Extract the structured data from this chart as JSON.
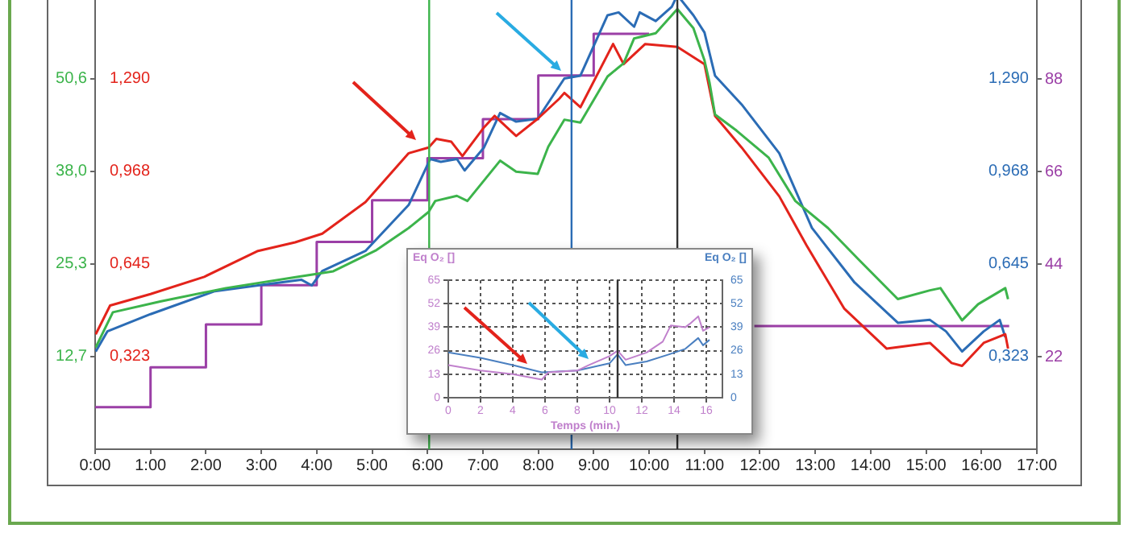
{
  "chart_data": [
    {
      "type": "line",
      "xlim": [
        0,
        17
      ],
      "xticks": [
        {
          "value": 0,
          "label": "0:00"
        },
        {
          "value": 1,
          "label": "1:00"
        },
        {
          "value": 2,
          "label": "2:00"
        },
        {
          "value": 3,
          "label": "3:00"
        },
        {
          "value": 4,
          "label": "4:00"
        },
        {
          "value": 5,
          "label": "5:00"
        },
        {
          "value": 6,
          "label": "6:00"
        },
        {
          "value": 7,
          "label": "7:00"
        },
        {
          "value": 8,
          "label": "8:00"
        },
        {
          "value": 9,
          "label": "9:00"
        },
        {
          "value": 10,
          "label": "10:00"
        },
        {
          "value": 11,
          "label": "11:00"
        },
        {
          "value": 12,
          "label": "12:00"
        },
        {
          "value": 13,
          "label": "13:00"
        },
        {
          "value": 14,
          "label": "14:00"
        },
        {
          "value": 15,
          "label": "15:00"
        },
        {
          "value": 16,
          "label": "16:00"
        },
        {
          "value": 17,
          "label": "17:00"
        }
      ],
      "ylim": [
        0,
        62
      ],
      "yticks": [
        {
          "value": 12.65,
          "label": "12,7"
        },
        {
          "value": 25.3,
          "label": "25,3"
        },
        {
          "value": 37.95,
          "label": "38,0"
        },
        {
          "value": 50.6,
          "label": "50,6"
        }
      ],
      "y2lim": [
        0,
        1.58
      ],
      "y2ticks": [
        {
          "value": 0.3225,
          "label": "0,323"
        },
        {
          "value": 0.645,
          "label": "0,645"
        },
        {
          "value": 0.9675,
          "label": "0,968"
        },
        {
          "value": 1.29,
          "label": "1,290"
        }
      ],
      "y3lim": [
        0,
        108
      ],
      "y3ticks": [
        22,
        44,
        66,
        88
      ],
      "series": [
        {
          "color": "#3cb44b",
          "axis": "y",
          "x": [
            0.01,
            0.32,
            1.19,
            2.36,
            3.62,
            4.3,
            5.08,
            5.66,
            6.02,
            6.14,
            6.53,
            6.72,
            7.31,
            7.6,
            7.99,
            8.18,
            8.47,
            8.76,
            9.25,
            9.54,
            9.73,
            10.12,
            10.51,
            10.8,
            11.0,
            11.09,
            11.19,
            11.58,
            12.16,
            12.64,
            13.23,
            13.81,
            14.49,
            15.07,
            15.26,
            15.65,
            15.94,
            16.43,
            16.48
          ],
          "values": [
            13.9,
            18.7,
            20.2,
            22.0,
            23.5,
            24.3,
            27.2,
            30.2,
            32.4,
            33.9,
            34.6,
            33.9,
            39.4,
            37.9,
            37.6,
            41.3,
            45.0,
            44.6,
            50.9,
            52.7,
            56.1,
            56.8,
            60.1,
            57.5,
            53.1,
            50.1,
            45.7,
            43.5,
            39.8,
            33.9,
            30.2,
            25.7,
            20.5,
            21.7,
            22.0,
            17.6,
            19.8,
            22.0,
            20.5
          ]
        },
        {
          "color": "#e3231b",
          "axis": "y2",
          "x": [
            0.01,
            0.27,
            1.0,
            1.97,
            2.94,
            3.61,
            4.1,
            4.88,
            5.66,
            6.02,
            6.16,
            6.43,
            6.63,
            7.02,
            7.21,
            7.6,
            7.99,
            8.38,
            8.47,
            8.76,
            9.35,
            9.54,
            9.93,
            10.51,
            11.0,
            11.19,
            11.67,
            12.35,
            12.84,
            13.52,
            14.29,
            15.07,
            15.46,
            15.65,
            16.04,
            16.43,
            16.48
          ],
          "values": [
            0.4,
            0.5,
            0.54,
            0.6,
            0.69,
            0.72,
            0.75,
            0.86,
            1.03,
            1.05,
            1.08,
            1.07,
            1.02,
            1.12,
            1.16,
            1.09,
            1.15,
            1.22,
            1.24,
            1.19,
            1.41,
            1.34,
            1.41,
            1.4,
            1.34,
            1.16,
            1.05,
            0.88,
            0.71,
            0.49,
            0.35,
            0.37,
            0.3,
            0.29,
            0.37,
            0.4,
            0.35
          ]
        },
        {
          "color": "#2b6cb5",
          "axis": "y2",
          "x": [
            0.01,
            0.22,
            1.0,
            2.16,
            2.94,
            3.72,
            3.91,
            4.1,
            4.88,
            5.66,
            6.05,
            6.24,
            6.53,
            6.67,
            7.02,
            7.31,
            7.6,
            7.99,
            8.47,
            8.76,
            9.25,
            9.45,
            9.73,
            9.83,
            10.12,
            10.41,
            10.51,
            10.8,
            11.0,
            11.19,
            11.67,
            12.35,
            12.94,
            13.71,
            14.49,
            15.07,
            15.36,
            15.65,
            16.04,
            16.33,
            16.43
          ],
          "values": [
            0.34,
            0.41,
            0.47,
            0.55,
            0.57,
            0.59,
            0.57,
            0.62,
            0.69,
            0.85,
            1.01,
            1.0,
            1.01,
            0.97,
            1.05,
            1.17,
            1.14,
            1.15,
            1.29,
            1.3,
            1.51,
            1.52,
            1.47,
            1.52,
            1.49,
            1.54,
            1.58,
            1.51,
            1.45,
            1.3,
            1.2,
            1.03,
            0.77,
            0.58,
            0.44,
            0.45,
            0.41,
            0.34,
            0.41,
            0.45,
            0.39
          ]
        },
        {
          "type": "step",
          "color": "#9b3fa6",
          "axis": "y3",
          "x": [
            0,
            1,
            2,
            3,
            4,
            5,
            6,
            7,
            8,
            9,
            10,
            11,
            11.9,
            16.5
          ],
          "values": [
            10.0,
            19.5,
            29.7,
            39.0,
            49.3,
            59.2,
            69.2,
            78.5,
            88.9,
            98.8,
            98.8,
            null,
            29.3,
            29.3
          ]
        }
      ],
      "ref_lines": [
        {
          "axis": "x",
          "value": 6.03,
          "color": "#3cb44b"
        },
        {
          "axis": "x",
          "value": 8.6,
          "color": "#2b6cb5"
        },
        {
          "axis": "x",
          "value": 10.51,
          "color": "#333333"
        }
      ]
    },
    {
      "type": "line",
      "xlabel": "Temps (min.)",
      "ylabel": "Eq O₂ []",
      "y2label": "Eq O₂ []",
      "xlim": [
        0,
        17
      ],
      "xticks": [
        0,
        2,
        4,
        6,
        8,
        10,
        12,
        14,
        16
      ],
      "ylim": [
        0,
        65
      ],
      "yticks": [
        0,
        13,
        26,
        39,
        52,
        65
      ],
      "y2lim": [
        0,
        65
      ],
      "y2ticks": [
        0,
        13,
        26,
        39,
        52,
        65
      ],
      "grid": true,
      "series": [
        {
          "color": "#c080cc",
          "axis": "y",
          "x": [
            0,
            2,
            4,
            5.8,
            6.2,
            8,
            8.7,
            10,
            10.5,
            11,
            12.3,
            13.3,
            13.8,
            14.7,
            15,
            15.5,
            15.8,
            16.2
          ],
          "values": [
            18,
            15,
            13,
            10,
            14,
            15,
            18,
            23,
            26,
            21,
            25,
            31,
            40,
            39,
            41,
            45,
            37,
            39
          ]
        },
        {
          "color": "#4a7fc0",
          "axis": "y2",
          "x": [
            0,
            2,
            4,
            5.8,
            8,
            10,
            10.5,
            11,
            12.3,
            13.7,
            14.7,
            15.5,
            15.8,
            16.2
          ],
          "values": [
            25,
            22,
            18,
            14,
            15,
            19,
            24,
            18,
            20,
            24,
            27,
            33,
            29,
            32
          ]
        }
      ],
      "ref_lines": [
        {
          "axis": "x",
          "value": 10.5,
          "color": "#333333"
        }
      ]
    }
  ]
}
